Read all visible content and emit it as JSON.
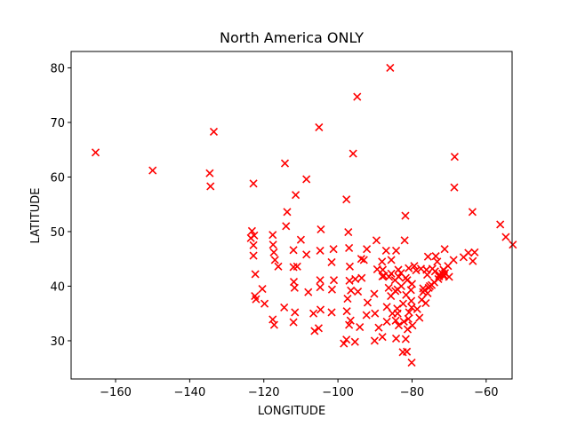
{
  "chart_data": {
    "type": "scatter",
    "title": "North America ONLY",
    "xlabel": "LONGITUDE",
    "ylabel": "LATITUDE",
    "xlim": [
      -172,
      -53
    ],
    "ylim": [
      23,
      83
    ],
    "xticks": [
      -160,
      -140,
      -120,
      -100,
      -80,
      -60
    ],
    "yticks": [
      30,
      40,
      50,
      60,
      70,
      80
    ],
    "grid": false,
    "legend": "none",
    "marker": "x",
    "marker_color": "#ff0000",
    "series": [
      {
        "points": [
          [
            -165.4,
            64.5
          ],
          [
            -150.0,
            61.2
          ],
          [
            -134.6,
            60.7
          ],
          [
            -134.4,
            58.3
          ],
          [
            -133.5,
            68.3
          ],
          [
            -85.9,
            80.0
          ],
          [
            -94.8,
            74.7
          ],
          [
            -105.1,
            69.1
          ],
          [
            -68.5,
            63.7
          ],
          [
            -95.9,
            64.3
          ],
          [
            -122.8,
            58.8
          ],
          [
            -114.3,
            62.5
          ],
          [
            -108.5,
            59.6
          ],
          [
            -111.4,
            56.7
          ],
          [
            -97.7,
            55.9
          ],
          [
            -68.6,
            58.1
          ],
          [
            -63.7,
            53.6
          ],
          [
            -56.2,
            51.3
          ],
          [
            -54.7,
            49.0
          ],
          [
            -52.8,
            47.6
          ],
          [
            -123.2,
            50.1
          ],
          [
            -123.5,
            48.8
          ],
          [
            -122.6,
            49.3
          ],
          [
            -122.8,
            47.5
          ],
          [
            -122.8,
            45.6
          ],
          [
            -122.3,
            42.2
          ],
          [
            -122.4,
            38.2
          ],
          [
            -122.1,
            37.6
          ],
          [
            -120.4,
            39.5
          ],
          [
            -119.8,
            36.8
          ],
          [
            -117.6,
            33.9
          ],
          [
            -117.2,
            32.9
          ],
          [
            -117.6,
            49.4
          ],
          [
            -117.5,
            47.6
          ],
          [
            -117.3,
            46.2
          ],
          [
            -117.0,
            44.8
          ],
          [
            -116.1,
            43.6
          ],
          [
            -114.5,
            36.1
          ],
          [
            -113.7,
            53.6
          ],
          [
            -114.0,
            51.0
          ],
          [
            -112.0,
            46.6
          ],
          [
            -112.0,
            43.5
          ],
          [
            -111.0,
            43.6
          ],
          [
            -111.9,
            40.8
          ],
          [
            -111.7,
            39.7
          ],
          [
            -111.6,
            35.2
          ],
          [
            -112.0,
            33.4
          ],
          [
            -110.0,
            48.5
          ],
          [
            -108.5,
            45.8
          ],
          [
            -108.0,
            38.9
          ],
          [
            -106.6,
            35.0
          ],
          [
            -106.3,
            31.8
          ],
          [
            -104.6,
            50.4
          ],
          [
            -104.8,
            46.5
          ],
          [
            -104.8,
            41.1
          ],
          [
            -104.8,
            39.8
          ],
          [
            -104.7,
            35.7
          ],
          [
            -105.2,
            32.3
          ],
          [
            -101.2,
            46.8
          ],
          [
            -101.7,
            44.4
          ],
          [
            -101.1,
            41.1
          ],
          [
            -101.6,
            39.4
          ],
          [
            -101.7,
            35.2
          ],
          [
            -97.2,
            49.9
          ],
          [
            -97.0,
            47.0
          ],
          [
            -96.8,
            43.6
          ],
          [
            -96.9,
            41.0
          ],
          [
            -96.5,
            39.2
          ],
          [
            -97.4,
            37.7
          ],
          [
            -97.6,
            35.4
          ],
          [
            -97.0,
            32.9
          ],
          [
            -97.7,
            30.2
          ],
          [
            -98.4,
            29.5
          ],
          [
            -95.4,
            29.8
          ],
          [
            -96.6,
            33.7
          ],
          [
            -94.6,
            39.0
          ],
          [
            -95.3,
            41.3
          ],
          [
            -93.7,
            45.0
          ],
          [
            -92.2,
            46.8
          ],
          [
            -89.6,
            48.4
          ],
          [
            -93.0,
            44.8
          ],
          [
            -93.6,
            41.5
          ],
          [
            -92.0,
            37.0
          ],
          [
            -94.1,
            32.5
          ],
          [
            -92.3,
            34.7
          ],
          [
            -90.2,
            38.6
          ],
          [
            -90.0,
            35.0
          ],
          [
            -90.1,
            30.0
          ],
          [
            -88.0,
            30.7
          ],
          [
            -89.0,
            32.4
          ],
          [
            -88.0,
            41.8
          ],
          [
            -87.9,
            43.0
          ],
          [
            -89.4,
            43.1
          ],
          [
            -88.1,
            44.5
          ],
          [
            -86.3,
            39.7
          ],
          [
            -87.6,
            41.9
          ],
          [
            -85.7,
            38.2
          ],
          [
            -86.8,
            36.2
          ],
          [
            -86.8,
            33.5
          ],
          [
            -84.4,
            33.7
          ],
          [
            -84.5,
            39.1
          ],
          [
            -83.0,
            42.4
          ],
          [
            -82.9,
            40.0
          ],
          [
            -81.7,
            41.5
          ],
          [
            -80.0,
            40.4
          ],
          [
            -84.0,
            35.9
          ],
          [
            -81.0,
            34.0
          ],
          [
            -80.8,
            35.2
          ],
          [
            -79.9,
            32.8
          ],
          [
            -81.4,
            28.0
          ],
          [
            -80.1,
            26.0
          ],
          [
            -82.5,
            27.9
          ],
          [
            -81.7,
            30.3
          ],
          [
            -84.3,
            30.4
          ],
          [
            -79.4,
            43.7
          ],
          [
            -75.7,
            45.4
          ],
          [
            -73.6,
            45.5
          ],
          [
            -71.2,
            46.8
          ],
          [
            -66.1,
            45.3
          ],
          [
            -63.6,
            44.6
          ],
          [
            -63.1,
            46.2
          ],
          [
            -64.8,
            46.1
          ],
          [
            -68.8,
            44.8
          ],
          [
            -70.3,
            43.7
          ],
          [
            -71.5,
            43.0
          ],
          [
            -71.1,
            42.4
          ],
          [
            -71.4,
            41.8
          ],
          [
            -72.7,
            41.8
          ],
          [
            -73.8,
            42.7
          ],
          [
            -74.0,
            40.7
          ],
          [
            -75.2,
            40.0
          ],
          [
            -76.6,
            39.3
          ],
          [
            -77.0,
            38.9
          ],
          [
            -77.4,
            37.5
          ],
          [
            -76.3,
            36.9
          ],
          [
            -78.6,
            35.8
          ],
          [
            -80.2,
            37.3
          ],
          [
            -81.6,
            38.4
          ],
          [
            -82.4,
            36.8
          ],
          [
            -80.9,
            43.3
          ],
          [
            -78.9,
            42.9
          ],
          [
            -77.6,
            43.2
          ],
          [
            -76.1,
            43.0
          ],
          [
            -75.9,
            42.1
          ],
          [
            -74.5,
            43.2
          ],
          [
            -73.2,
            44.5
          ],
          [
            -72.6,
            42.1
          ],
          [
            -70.0,
            41.7
          ],
          [
            -71.8,
            42.3
          ],
          [
            -72.9,
            41.3
          ],
          [
            -74.7,
            40.2
          ],
          [
            -75.5,
            39.7
          ],
          [
            -82.0,
            48.4
          ],
          [
            -81.8,
            52.9
          ],
          [
            -87.0,
            46.5
          ],
          [
            -84.3,
            46.5
          ],
          [
            -85.6,
            44.8
          ],
          [
            -83.7,
            43.0
          ],
          [
            -85.6,
            42.3
          ],
          [
            -86.2,
            41.7
          ],
          [
            -84.6,
            41.1
          ],
          [
            -83.6,
            41.7
          ],
          [
            -83.9,
            39.4
          ],
          [
            -81.3,
            41.1
          ],
          [
            -80.3,
            39.3
          ],
          [
            -85.3,
            35.0
          ],
          [
            -83.9,
            35.0
          ],
          [
            -82.2,
            33.5
          ],
          [
            -81.2,
            32.1
          ],
          [
            -83.6,
            32.8
          ],
          [
            -80.1,
            36.1
          ],
          [
            -78.0,
            34.2
          ],
          [
            -77.0,
            39.6
          ],
          [
            -75.8,
            38.7
          ],
          [
            -71.4,
            42.0
          ]
        ]
      }
    ]
  }
}
